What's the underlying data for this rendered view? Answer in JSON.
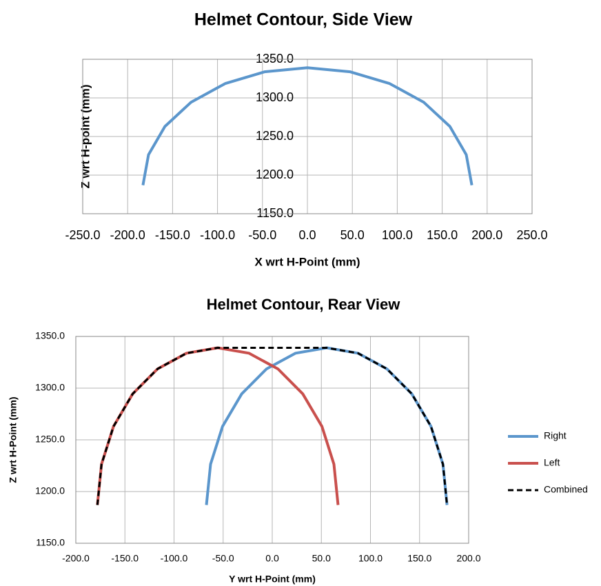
{
  "chart_data": [
    {
      "type": "line",
      "title": "Helmet Contour, Side View",
      "xlabel": "X wrt H-Point (mm)",
      "ylabel": "Z wrt H-point  (mm)",
      "xlim": [
        -250,
        250
      ],
      "ylim": [
        1150,
        1350
      ],
      "grid": true,
      "xticks": [
        {
          "value": -250,
          "label": "-250.0"
        },
        {
          "value": -200,
          "label": "-200.0"
        },
        {
          "value": -150,
          "label": "-150.0"
        },
        {
          "value": -100,
          "label": "-100.0"
        },
        {
          "value": -50,
          "label": "-50.0"
        },
        {
          "value": 0,
          "label": "0.0"
        },
        {
          "value": 50,
          "label": "50.0"
        },
        {
          "value": 100,
          "label": "100.0"
        },
        {
          "value": 150,
          "label": "150.0"
        },
        {
          "value": 200,
          "label": "200.0"
        },
        {
          "value": 250,
          "label": "250.0"
        }
      ],
      "yticks": [
        {
          "value": 1150,
          "label": "1150.0"
        },
        {
          "value": 1200,
          "label": "1200.0"
        },
        {
          "value": 1250,
          "label": "1250.0"
        },
        {
          "value": 1300,
          "label": "1300.0"
        },
        {
          "value": 1350,
          "label": "1350.0"
        }
      ],
      "series": [
        {
          "color": "#5b96cc",
          "style": "solid",
          "x": [
            -183,
            -176.8,
            -158.5,
            -129.4,
            -91.5,
            -47.4,
            0,
            47.4,
            91.5,
            129.4,
            158.5,
            176.8,
            183
          ],
          "values": [
            1187,
            1226.4,
            1263,
            1294.5,
            1318.6,
            1333.8,
            1339,
            1333.8,
            1318.6,
            1294.5,
            1263,
            1226.4,
            1187
          ]
        }
      ]
    },
    {
      "type": "line",
      "title": "Helmet Contour, Rear View",
      "xlabel": "Y wrt H-Point (mm)",
      "ylabel": "Z wrt  H-Point (mm)",
      "xlim": [
        -200,
        200
      ],
      "ylim": [
        1150,
        1350
      ],
      "grid": true,
      "legend": "right",
      "xticks": [
        {
          "value": -200,
          "label": "-200.0"
        },
        {
          "value": -150,
          "label": "-150.0"
        },
        {
          "value": -100,
          "label": "-100.0"
        },
        {
          "value": -50,
          "label": "-50.0"
        },
        {
          "value": 0,
          "label": "0.0"
        },
        {
          "value": 50,
          "label": "50.0"
        },
        {
          "value": 100,
          "label": "100.0"
        },
        {
          "value": 150,
          "label": "150.0"
        },
        {
          "value": 200,
          "label": "200.0"
        }
      ],
      "yticks": [
        {
          "value": 1150,
          "label": "1150.0"
        },
        {
          "value": 1200,
          "label": "1200.0"
        },
        {
          "value": 1250,
          "label": "1250.0"
        },
        {
          "value": 1300,
          "label": "1300.0"
        },
        {
          "value": 1350,
          "label": "1350.0"
        }
      ],
      "series": [
        {
          "name": "Right",
          "color": "#5b96cc",
          "style": "solid",
          "x": [
            -67,
            -62.8,
            -50.6,
            -31.1,
            -5.8,
            23.8,
            55.5,
            87.2,
            116.8,
            142.1,
            161.6,
            173.8,
            178
          ],
          "values": [
            1187,
            1226.4,
            1263,
            1294.5,
            1318.6,
            1333.8,
            1339,
            1333.8,
            1318.6,
            1294.5,
            1263,
            1226.4,
            1187
          ]
        },
        {
          "name": "Left",
          "color": "#c9504d",
          "style": "solid",
          "x": [
            -178,
            -173.8,
            -161.6,
            -142.1,
            -116.8,
            -87.2,
            -55.5,
            -23.8,
            5.8,
            31.1,
            50.6,
            62.8,
            67
          ],
          "values": [
            1187,
            1226.4,
            1263,
            1294.5,
            1318.6,
            1333.8,
            1339,
            1333.8,
            1318.6,
            1294.5,
            1263,
            1226.4,
            1187
          ]
        },
        {
          "name": "Combined",
          "color": "#000000",
          "style": "dashed",
          "x": [
            -178,
            -173.8,
            -161.6,
            -142.1,
            -116.8,
            -87.2,
            -55.5,
            55.5,
            87.2,
            116.8,
            142.1,
            161.6,
            173.8,
            178
          ],
          "values": [
            1187,
            1226.4,
            1263,
            1294.5,
            1318.6,
            1333.8,
            1339,
            1339,
            1333.8,
            1318.6,
            1294.5,
            1263,
            1226.4,
            1187
          ]
        }
      ]
    }
  ]
}
